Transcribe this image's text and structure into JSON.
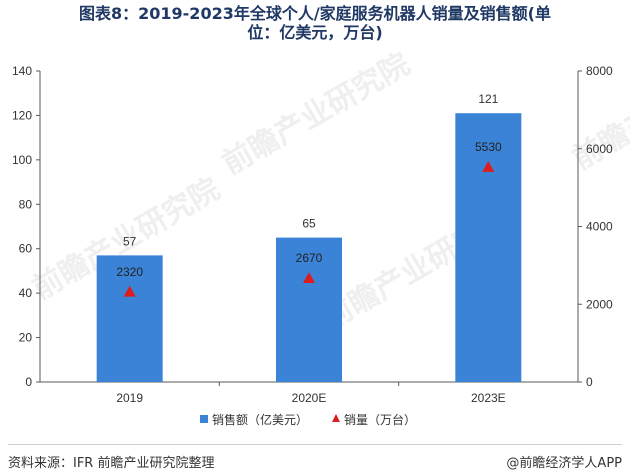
{
  "header": {
    "title_line1": "图表8：2019-2023年全球个人/家庭服务机器人销量及销售额(单",
    "title_line2": "位：亿美元，万台)"
  },
  "footer": {
    "source": "资料来源：IFR 前瞻产业研究院整理",
    "brand": "@前瞻经济学人APP"
  },
  "watermark": {
    "text": "前瞻产业研究院"
  },
  "chart_data": {
    "type": "bar",
    "categories": [
      "2019",
      "2020E",
      "2023E"
    ],
    "series": [
      {
        "name": "销售额（亿美元）",
        "type": "bar",
        "axis": "left",
        "values": [
          57,
          65,
          121
        ],
        "color": "#3b83d6"
      },
      {
        "name": "销量（万台）",
        "type": "scatter",
        "marker": "triangle",
        "axis": "right",
        "values": [
          2320,
          2670,
          5530
        ],
        "color": "#e01b1b"
      }
    ],
    "y_left": {
      "min": 0,
      "max": 140,
      "ticks": [
        0,
        20,
        40,
        60,
        80,
        100,
        120,
        140
      ]
    },
    "y_right": {
      "min": 0,
      "max": 8000,
      "ticks": [
        0,
        2000,
        4000,
        6000,
        8000
      ]
    },
    "legend": {
      "position": "bottom"
    },
    "grid": false
  }
}
